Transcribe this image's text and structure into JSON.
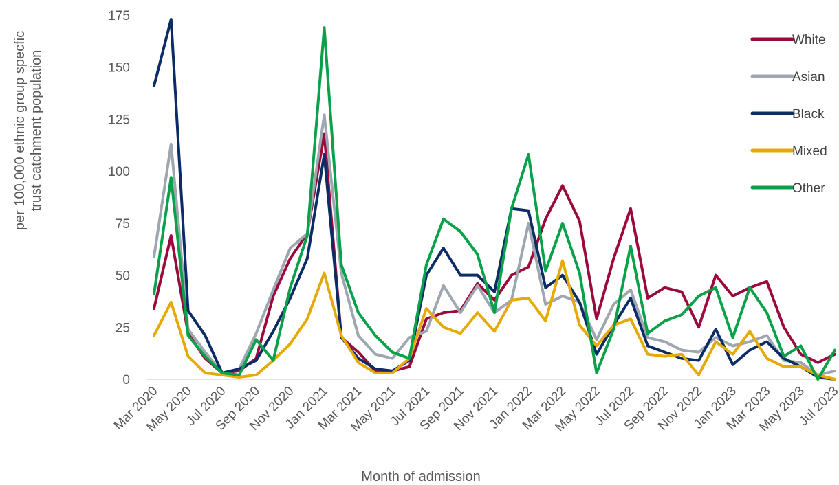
{
  "chart_data": {
    "type": "line",
    "xlabel": "Month of admission",
    "ylabel_lines": [
      "per 100,000 ethnic group specfic",
      "trust catchment  population"
    ],
    "ylim": [
      0,
      175
    ],
    "yticks": [
      0,
      25,
      50,
      75,
      100,
      125,
      150,
      175
    ],
    "x": [
      "Mar 2020",
      "Apr 2020",
      "May 2020",
      "Jun 2020",
      "Jul 2020",
      "Aug 2020",
      "Sep 2020",
      "Oct 2020",
      "Nov 2020",
      "Dec 2020",
      "Jan 2021",
      "Feb 2021",
      "Mar 2021",
      "Apr 2021",
      "May 2021",
      "Jun 2021",
      "Jul 2021",
      "Aug 2021",
      "Sep 2021",
      "Oct 2021",
      "Nov 2021",
      "Dec 2021",
      "Jan 2022",
      "Feb 2022",
      "Mar 2022",
      "Apr 2022",
      "May 2022",
      "Jun 2022",
      "Jul 2022",
      "Aug 2022",
      "Sep 2022",
      "Oct 2022",
      "Nov 2022",
      "Dec 2022",
      "Jan 2023",
      "Feb 2023",
      "Mar 2023",
      "Apr 2023",
      "May 2023",
      "Jun 2023",
      "Jul 2023"
    ],
    "xtick_labels": [
      "Mar 2020",
      "May 2020",
      "Jul 2020",
      "Sep 2020",
      "Nov 2020",
      "Jan 2021",
      "Mar 2021",
      "May 2021",
      "Jul 2021",
      "Sep 2021",
      "Nov 2021",
      "Jan 2022",
      "Mar 2022",
      "May 2022",
      "Jul 2022",
      "Sep 2022",
      "Nov 2022",
      "Jan 2023",
      "Mar 2023",
      "May 2023",
      "Jul 2023"
    ],
    "grid": false,
    "legend_position": "right",
    "series": [
      {
        "name": "White",
        "color": "#9b0a3c",
        "values": [
          34,
          69,
          22,
          10,
          3,
          4,
          10,
          40,
          58,
          70,
          118,
          20,
          13,
          4,
          4,
          6,
          29,
          32,
          33,
          46,
          38,
          50,
          54,
          77,
          93,
          76,
          29,
          58,
          82,
          39,
          44,
          42,
          25,
          50,
          40,
          44,
          47,
          25,
          12,
          8,
          12
        ]
      },
      {
        "name": "Asian",
        "color": "#9ea6b0",
        "values": [
          59,
          113,
          24,
          13,
          3,
          5,
          22,
          43,
          63,
          70,
          127,
          51,
          21,
          12,
          10,
          20,
          23,
          45,
          32,
          45,
          32,
          38,
          75,
          36,
          40,
          37,
          19,
          36,
          43,
          20,
          18,
          14,
          13,
          20,
          16,
          18,
          21,
          9,
          8,
          2,
          4
        ]
      },
      {
        "name": "Black",
        "color": "#0c2c66",
        "values": [
          141,
          173,
          33,
          21,
          3,
          5,
          9,
          23,
          39,
          58,
          108,
          20,
          10,
          5,
          4,
          9,
          50,
          63,
          50,
          50,
          42,
          82,
          81,
          44,
          50,
          37,
          12,
          26,
          39,
          16,
          13,
          10,
          9,
          24,
          7,
          14,
          18,
          10,
          6,
          1,
          0
        ]
      },
      {
        "name": "Mixed",
        "color": "#e6aa08",
        "values": [
          21,
          37,
          11,
          3,
          2,
          1,
          2,
          9,
          17,
          29,
          51,
          21,
          8,
          3,
          3,
          10,
          34,
          25,
          22,
          32,
          23,
          38,
          39,
          28,
          57,
          26,
          16,
          26,
          29,
          12,
          11,
          12,
          2,
          18,
          12,
          23,
          10,
          6,
          6,
          2,
          0
        ]
      },
      {
        "name": "Other",
        "color": "#0aa14a",
        "values": [
          41,
          97,
          21,
          11,
          3,
          2,
          19,
          9,
          44,
          69,
          169,
          55,
          32,
          21,
          13,
          10,
          55,
          77,
          71,
          60,
          32,
          82,
          108,
          52,
          75,
          51,
          3,
          24,
          64,
          22,
          28,
          31,
          40,
          44,
          20,
          44,
          32,
          11,
          16,
          0,
          14
        ]
      }
    ]
  }
}
